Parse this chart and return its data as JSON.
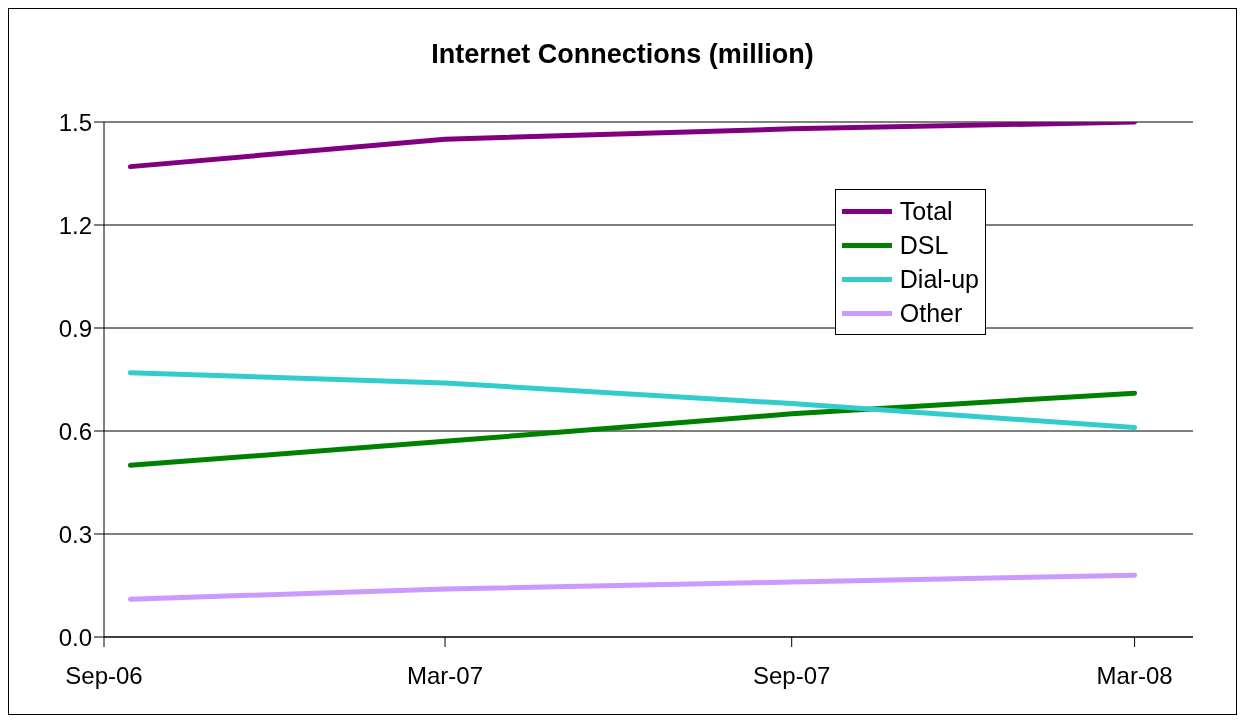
{
  "chart_data": {
    "type": "line",
    "title": "Internet Connections (million)",
    "x": [
      "2006-09-15",
      "2007-03",
      "2007-09",
      "2008-03"
    ],
    "xlim": [
      "2006-09",
      "2008-04"
    ],
    "xticks": [
      {
        "value": "2006-09",
        "label": "Sep-06"
      },
      {
        "value": "2007-03",
        "label": "Mar-07"
      },
      {
        "value": "2007-09",
        "label": "Sep-07"
      },
      {
        "value": "2008-03",
        "label": "Mar-08"
      }
    ],
    "ylim": [
      0,
      1.5
    ],
    "yticks": [
      {
        "value": 0,
        "label": "0.0"
      },
      0.3,
      0.6,
      0.9,
      1.2,
      1.5
    ],
    "grid": "y",
    "legend": "right",
    "marker": "none",
    "line_style": "solid",
    "series": [
      {
        "name": "Total",
        "color": "#800080",
        "values": [
          1.37,
          1.45,
          1.48,
          1.5
        ]
      },
      {
        "name": "DSL",
        "color": "#008000",
        "values": [
          0.5,
          0.57,
          0.65,
          0.71
        ]
      },
      {
        "name": "Dial-up",
        "color": "#33cccc",
        "values": [
          0.77,
          0.74,
          0.68,
          0.61
        ]
      },
      {
        "name": "Other",
        "color": "#cc99ff",
        "values": [
          0.11,
          0.14,
          0.16,
          0.18
        ]
      }
    ]
  }
}
